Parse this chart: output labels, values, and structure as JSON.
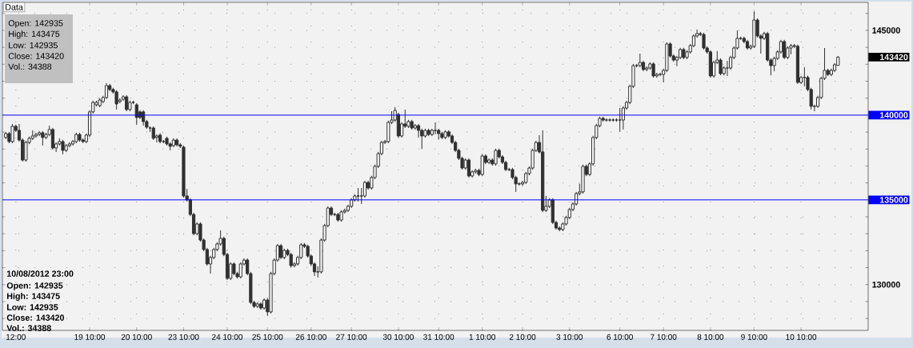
{
  "chart_data": {
    "type": "candlestick",
    "color": "#303030",
    "grid": true,
    "ylim": [
      127300,
      146650
    ],
    "yticks": [
      {
        "value": 128000,
        "label": null
      },
      {
        "value": 129000,
        "label": null
      },
      130000,
      {
        "value": 131000,
        "label": null
      },
      {
        "value": 132000,
        "label": null
      },
      {
        "value": 133000,
        "label": null
      },
      {
        "value": 134000,
        "label": null
      },
      {
        "value": 136000,
        "label": null
      },
      {
        "value": 137000,
        "label": null
      },
      {
        "value": 138000,
        "label": null
      },
      {
        "value": 139000,
        "label": null
      },
      {
        "value": 141000,
        "label": null
      },
      {
        "value": 142000,
        "label": null
      },
      {
        "value": 143000,
        "label": null
      },
      {
        "value": 144000,
        "label": null
      },
      145000,
      {
        "value": 146000,
        "label": null
      }
    ],
    "ref_lines": [
      {
        "axis": "y",
        "value": 140000,
        "label": "140000",
        "color": "#0000ff"
      },
      {
        "axis": "y",
        "value": 135000,
        "label": "135000",
        "color": "#0000ff"
      }
    ],
    "annotations": [
      "Data",
      "Open: 142935",
      "High: 143475",
      "Low: 142935",
      "Close: 143420",
      "Vol.: 34388",
      "10/08/2012 23:00",
      "Open: 142935",
      "High: 143475",
      "Low: 142935",
      "Close: 143420",
      "Vol.: 34388",
      "143420"
    ],
    "categories": [
      null,
      null,
      null,
      "12:00",
      null,
      null,
      null,
      null,
      null,
      null,
      null,
      null,
      null,
      null,
      null,
      null,
      null,
      null,
      null,
      null,
      null,
      null,
      null,
      null,
      null,
      "19 10:00",
      null,
      null,
      null,
      null,
      null,
      null,
      null,
      null,
      null,
      null,
      null,
      null,
      null,
      "20 10:00",
      null,
      null,
      null,
      null,
      null,
      null,
      null,
      null,
      null,
      null,
      null,
      null,
      null,
      "23 10:00",
      null,
      null,
      null,
      null,
      null,
      null,
      null,
      null,
      null,
      null,
      null,
      null,
      "24 10:00",
      null,
      null,
      null,
      null,
      null,
      null,
      null,
      null,
      null,
      null,
      null,
      "25 10:00",
      null,
      null,
      null,
      null,
      null,
      null,
      null,
      null,
      null,
      null,
      null,
      null,
      "26 10:00",
      null,
      null,
      null,
      null,
      null,
      null,
      null,
      null,
      null,
      null,
      null,
      "27 10:00",
      null,
      null,
      null,
      null,
      null,
      null,
      null,
      null,
      null,
      null,
      null,
      null,
      null,
      "30 10:00",
      null,
      null,
      null,
      null,
      null,
      null,
      null,
      null,
      null,
      null,
      null,
      "31 10:00",
      null,
      null,
      null,
      null,
      null,
      null,
      null,
      null,
      null,
      null,
      null,
      null,
      "1 10:00",
      null,
      null,
      null,
      null,
      null,
      null,
      null,
      null,
      null,
      null,
      null,
      "2 10:00",
      null,
      null,
      null,
      null,
      null,
      null,
      null,
      null,
      null,
      null,
      null,
      null,
      null,
      "3 10:00",
      null,
      null,
      null,
      null,
      null,
      null,
      null,
      null,
      null,
      null,
      null,
      null,
      null,
      null,
      "6 10:00",
      null,
      null,
      null,
      null,
      null,
      null,
      null,
      null,
      null,
      null,
      null,
      null,
      "7 10:00",
      null,
      null,
      null,
      null,
      null,
      null,
      null,
      null,
      null,
      null,
      null,
      null,
      null,
      "8 10:00",
      null,
      null,
      null,
      null,
      null,
      null,
      null,
      null,
      null,
      null,
      null,
      null,
      "9 10:00",
      null,
      null,
      null,
      null,
      null,
      null,
      null,
      null,
      null,
      null,
      null,
      null,
      null,
      "10 10:00",
      null,
      null,
      null,
      null,
      null,
      null,
      null,
      null,
      null,
      null,
      null
    ],
    "ohlc": [
      [
        138680,
        139010,
        138580,
        138910
      ],
      [
        138910,
        139010,
        138340,
        138440
      ],
      [
        138440,
        139480,
        138340,
        139340
      ],
      [
        139340,
        139440,
        139000,
        139100
      ],
      [
        139100,
        139480,
        138430,
        138530
      ],
      [
        138530,
        138630,
        137260,
        137350
      ],
      [
        137350,
        138490,
        137250,
        138390
      ],
      [
        138390,
        138730,
        138290,
        138630
      ],
      [
        138630,
        139100,
        138530,
        138770
      ],
      [
        138770,
        138960,
        138670,
        138860
      ],
      [
        138860,
        139060,
        138760,
        138960
      ],
      [
        138960,
        139060,
        138200,
        138680
      ],
      [
        138680,
        138960,
        138580,
        138860
      ],
      [
        138860,
        139380,
        138760,
        139150
      ],
      [
        139150,
        139250,
        137960,
        138060
      ],
      [
        138060,
        138400,
        137830,
        138300
      ],
      [
        138300,
        138630,
        138200,
        138440
      ],
      [
        138440,
        138540,
        137690,
        137920
      ],
      [
        137920,
        138300,
        137820,
        138200
      ],
      [
        138200,
        138400,
        138100,
        138300
      ],
      [
        138300,
        138540,
        138200,
        138440
      ],
      [
        138440,
        138960,
        138340,
        138860
      ],
      [
        138860,
        138960,
        138430,
        138530
      ],
      [
        138530,
        138630,
        138340,
        138440
      ],
      [
        138440,
        138920,
        138340,
        138820
      ],
      [
        138820,
        140290,
        138720,
        140190
      ],
      [
        140190,
        140850,
        140090,
        140750
      ],
      [
        140610,
        140850,
        140510,
        140750
      ],
      [
        140560,
        140990,
        140460,
        140890
      ],
      [
        140800,
        141140,
        140700,
        141040
      ],
      [
        141040,
        141890,
        140940,
        141740
      ],
      [
        141740,
        141840,
        141410,
        141510
      ],
      [
        141510,
        141610,
        141270,
        141370
      ],
      [
        141370,
        141470,
        140330,
        140660
      ],
      [
        140800,
        140990,
        140700,
        140890
      ],
      [
        140940,
        141180,
        140840,
        141080
      ],
      [
        141080,
        141180,
        140230,
        140330
      ],
      [
        140330,
        140850,
        140230,
        140750
      ],
      [
        140750,
        140850,
        140650,
        140750
      ],
      [
        140610,
        140710,
        139430,
        139860
      ],
      [
        140190,
        140290,
        139760,
        139860
      ],
      [
        140190,
        140290,
        139380,
        139620
      ],
      [
        139620,
        139720,
        139190,
        139290
      ],
      [
        139240,
        139340,
        139010,
        139240
      ],
      [
        139240,
        139340,
        138530,
        138630
      ],
      [
        138680,
        138870,
        138390,
        138770
      ],
      [
        138820,
        138920,
        138340,
        138440
      ],
      [
        138440,
        138540,
        138340,
        138440
      ],
      [
        138630,
        138730,
        138200,
        138300
      ],
      [
        138300,
        138400,
        137920,
        138160
      ],
      [
        138200,
        138630,
        138100,
        138530
      ],
      [
        138530,
        138630,
        138150,
        138250
      ],
      [
        138250,
        138350,
        138060,
        138160
      ],
      [
        138110,
        138210,
        135130,
        135230
      ],
      [
        135230,
        135650,
        134900,
        135000
      ],
      [
        135000,
        135100,
        134040,
        134140
      ],
      [
        134140,
        134240,
        132910,
        133010
      ],
      [
        133010,
        133680,
        132910,
        133580
      ],
      [
        133580,
        133680,
        132530,
        132630
      ],
      [
        132630,
        132730,
        131970,
        132070
      ],
      [
        132070,
        132170,
        131120,
        131220
      ],
      [
        131220,
        131700,
        130650,
        131600
      ],
      [
        131600,
        132170,
        131500,
        132070
      ],
      [
        132070,
        132500,
        131970,
        132400
      ],
      [
        132400,
        133200,
        132300,
        132730
      ],
      [
        132730,
        132830,
        131680,
        131780
      ],
      [
        131780,
        131880,
        130270,
        130370
      ],
      [
        130370,
        131320,
        130270,
        131220
      ],
      [
        131220,
        131320,
        130550,
        130650
      ],
      [
        130650,
        130750,
        130360,
        130460
      ],
      [
        130460,
        131320,
        130360,
        131220
      ],
      [
        131220,
        131550,
        131120,
        131450
      ],
      [
        131450,
        131550,
        130550,
        130650
      ],
      [
        130650,
        130750,
        128850,
        128950
      ],
      [
        128950,
        129050,
        128620,
        128720
      ],
      [
        128720,
        128960,
        128620,
        128860
      ],
      [
        128860,
        128960,
        128520,
        128620
      ],
      [
        128620,
        129190,
        128520,
        129090
      ],
      [
        129090,
        129190,
        128150,
        128390
      ],
      [
        128390,
        130750,
        128290,
        130650
      ],
      [
        130650,
        131550,
        130550,
        131450
      ],
      [
        131450,
        132400,
        131350,
        132300
      ],
      [
        132300,
        132400,
        131500,
        131600
      ],
      [
        131600,
        132120,
        131500,
        132020
      ],
      [
        132020,
        132120,
        131680,
        131780
      ],
      [
        131780,
        131880,
        131020,
        131120
      ],
      [
        131120,
        131320,
        131020,
        131220
      ],
      [
        131220,
        131700,
        131120,
        131600
      ],
      [
        131600,
        132450,
        131500,
        132350
      ],
      [
        132350,
        132450,
        132160,
        132260
      ],
      [
        132260,
        132360,
        131590,
        131690
      ],
      [
        131690,
        131790,
        131120,
        131220
      ],
      [
        131220,
        131320,
        130510,
        130750
      ],
      [
        130750,
        131080,
        130420,
        130750
      ],
      [
        130750,
        132730,
        130650,
        132630
      ],
      [
        132630,
        133580,
        132530,
        133480
      ],
      [
        133480,
        134620,
        133380,
        134520
      ],
      [
        134520,
        134620,
        134040,
        134140
      ],
      [
        134140,
        134240,
        134040,
        134140
      ],
      [
        134140,
        134240,
        133710,
        133810
      ],
      [
        133810,
        134390,
        133710,
        134290
      ],
      [
        134290,
        134480,
        134190,
        134380
      ],
      [
        134380,
        134720,
        134280,
        134620
      ],
      [
        134620,
        135100,
        134520,
        135000
      ],
      [
        135000,
        135330,
        134900,
        135230
      ],
      [
        135230,
        135700,
        134900,
        135230
      ],
      [
        135230,
        135700,
        134760,
        135230
      ],
      [
        135230,
        136130,
        135130,
        136030
      ],
      [
        136030,
        136130,
        135600,
        135700
      ],
      [
        135700,
        136420,
        135600,
        136320
      ],
      [
        136320,
        137080,
        136220,
        136980
      ],
      [
        136980,
        137830,
        136880,
        137730
      ],
      [
        137730,
        138490,
        137630,
        138390
      ],
      [
        138390,
        138540,
        138290,
        138440
      ],
      [
        138440,
        139670,
        138340,
        139570
      ],
      [
        139570,
        140230,
        139470,
        139710
      ],
      [
        139710,
        140480,
        139610,
        140280
      ],
      [
        140040,
        140140,
        138670,
        138770
      ],
      [
        138770,
        139580,
        138670,
        139480
      ],
      [
        139480,
        140330,
        139240,
        139340
      ],
      [
        139340,
        139720,
        139240,
        139620
      ],
      [
        139620,
        139720,
        139140,
        139240
      ],
      [
        139240,
        139480,
        139140,
        139380
      ],
      [
        139380,
        139480,
        138670,
        139100
      ],
      [
        139100,
        139200,
        138000,
        138770
      ],
      [
        138770,
        139200,
        138670,
        139100
      ],
      [
        139100,
        139200,
        138760,
        138860
      ],
      [
        138860,
        139200,
        138760,
        139100
      ],
      [
        139100,
        139570,
        138860,
        139100
      ],
      [
        139100,
        139200,
        138560,
        138910
      ],
      [
        138910,
        139010,
        138580,
        138680
      ],
      [
        138680,
        139110,
        138580,
        139010
      ],
      [
        139010,
        139110,
        138670,
        138770
      ],
      [
        138770,
        138870,
        138290,
        138390
      ],
      [
        138390,
        138490,
        137820,
        137920
      ],
      [
        137920,
        138020,
        137350,
        137450
      ],
      [
        137450,
        137550,
        136780,
        136880
      ],
      [
        136880,
        137450,
        136780,
        137350
      ],
      [
        137350,
        137450,
        136310,
        136410
      ],
      [
        136410,
        136750,
        136310,
        136650
      ],
      [
        136650,
        136840,
        136550,
        136740
      ],
      [
        136740,
        136840,
        136400,
        136500
      ],
      [
        136500,
        137690,
        136400,
        137590
      ],
      [
        137590,
        137690,
        137110,
        137210
      ],
      [
        137210,
        137450,
        137110,
        137350
      ],
      [
        137350,
        137450,
        137020,
        137120
      ],
      [
        137120,
        138020,
        137020,
        137920
      ],
      [
        137920,
        138020,
        137440,
        137540
      ],
      [
        137540,
        137640,
        137110,
        137210
      ],
      [
        137210,
        137310,
        136690,
        136790
      ],
      [
        136790,
        136890,
        136690,
        136790
      ],
      [
        136790,
        136890,
        136220,
        136320
      ],
      [
        136320,
        136420,
        135470,
        135940
      ],
      [
        135940,
        136040,
        135840,
        135940
      ],
      [
        135940,
        136130,
        135840,
        136030
      ],
      [
        136030,
        136650,
        135930,
        136550
      ],
      [
        136550,
        136980,
        136450,
        136880
      ],
      [
        136880,
        138020,
        136780,
        137920
      ],
      [
        137920,
        138490,
        137820,
        138390
      ],
      [
        138390,
        138820,
        137730,
        137830
      ],
      [
        137830,
        139100,
        134280,
        134380
      ],
      [
        134380,
        135230,
        134280,
        134620
      ],
      [
        134620,
        135100,
        134520,
        135000
      ],
      [
        135000,
        135100,
        133570,
        133670
      ],
      [
        133670,
        133770,
        133240,
        133340
      ],
      [
        133340,
        133440,
        133150,
        133250
      ],
      [
        133250,
        133680,
        133150,
        133580
      ],
      [
        133580,
        134060,
        133480,
        133960
      ],
      [
        133960,
        134530,
        133860,
        134430
      ],
      [
        134430,
        134860,
        134330,
        134760
      ],
      [
        134760,
        135470,
        134660,
        135370
      ],
      [
        135370,
        135950,
        135270,
        135470
      ],
      [
        135470,
        137080,
        135370,
        136980
      ],
      [
        136980,
        137080,
        136400,
        136500
      ],
      [
        136500,
        137220,
        136400,
        137120
      ],
      [
        137120,
        138780,
        137020,
        138680
      ],
      [
        138680,
        139480,
        138580,
        139380
      ],
      [
        139380,
        139910,
        139280,
        139810
      ],
      [
        139810,
        139910,
        139610,
        139710
      ],
      [
        139710,
        139810,
        139610,
        139710
      ],
      [
        139710,
        139810,
        139610,
        139710
      ],
      [
        139710,
        139810,
        139610,
        139710
      ],
      [
        139710,
        139810,
        139610,
        139710
      ],
      [
        139710,
        140420,
        139010,
        139710
      ],
      [
        139710,
        140520,
        139150,
        140420
      ],
      [
        140420,
        140850,
        140320,
        140750
      ],
      [
        140750,
        141800,
        140650,
        141700
      ],
      [
        141700,
        143020,
        141600,
        142920
      ],
      [
        142920,
        143020,
        142820,
        142920
      ],
      [
        142920,
        143630,
        142820,
        143110
      ],
      [
        143110,
        143210,
        142590,
        142690
      ],
      [
        142690,
        142880,
        142590,
        142780
      ],
      [
        142780,
        143120,
        142680,
        143020
      ],
      [
        143020,
        143120,
        142210,
        142310
      ],
      [
        142310,
        142500,
        142210,
        142400
      ],
      [
        142400,
        142500,
        142300,
        142400
      ],
      [
        142400,
        142740,
        141930,
        142640
      ],
      [
        142640,
        144300,
        142540,
        144200
      ],
      [
        144200,
        144300,
        143390,
        143490
      ],
      [
        143490,
        143590,
        143150,
        143250
      ],
      [
        143250,
        143500,
        142890,
        143400
      ],
      [
        143400,
        143970,
        143300,
        143870
      ],
      [
        143870,
        143970,
        143300,
        143400
      ],
      [
        143400,
        143830,
        143300,
        143730
      ],
      [
        143730,
        144200,
        143630,
        144100
      ],
      [
        144100,
        144770,
        144000,
        144670
      ],
      [
        144670,
        145050,
        144570,
        144810
      ],
      [
        144810,
        144910,
        144660,
        144760
      ],
      [
        144760,
        144860,
        143860,
        143960
      ],
      [
        143960,
        144060,
        143630,
        143730
      ],
      [
        143730,
        143830,
        142210,
        142310
      ],
      [
        142310,
        143210,
        142210,
        143110
      ],
      [
        143110,
        143780,
        143010,
        143250
      ],
      [
        143250,
        143350,
        142350,
        142450
      ],
      [
        142450,
        142880,
        142350,
        142780
      ],
      [
        142780,
        143200,
        142310,
        142780
      ],
      [
        142780,
        143500,
        142680,
        143400
      ],
      [
        143400,
        144060,
        143300,
        143960
      ],
      [
        143960,
        145000,
        143860,
        144530
      ],
      [
        144530,
        144630,
        144430,
        144530
      ],
      [
        144530,
        144630,
        144240,
        144340
      ],
      [
        144340,
        144440,
        143860,
        143960
      ],
      [
        143960,
        144160,
        143860,
        144060
      ],
      [
        144060,
        146130,
        143960,
        145610
      ],
      [
        145610,
        145710,
        144570,
        144670
      ],
      [
        144670,
        144770,
        143630,
        144530
      ],
      [
        144530,
        144910,
        144430,
        144810
      ],
      [
        144810,
        144910,
        143150,
        143250
      ],
      [
        143250,
        143350,
        142350,
        142920
      ],
      [
        142920,
        143450,
        142590,
        143350
      ],
      [
        143350,
        143830,
        143250,
        143730
      ],
      [
        143730,
        144440,
        143630,
        144340
      ],
      [
        144340,
        144440,
        143300,
        143400
      ],
      [
        143400,
        144060,
        143300,
        143960
      ],
      [
        143960,
        144200,
        143590,
        144100
      ],
      [
        144100,
        144200,
        143960,
        144060
      ],
      [
        144060,
        144160,
        141840,
        141930
      ],
      [
        141930,
        142320,
        141830,
        142220
      ],
      [
        142220,
        142820,
        141700,
        142220
      ],
      [
        142220,
        142320,
        141410,
        141510
      ],
      [
        141510,
        141610,
        140330,
        140520
      ],
      [
        140520,
        140620,
        140230,
        140520
      ],
      [
        140520,
        141140,
        140420,
        141040
      ],
      [
        141040,
        142270,
        140940,
        142170
      ],
      [
        142170,
        143960,
        142070,
        142640
      ],
      [
        142640,
        142740,
        142300,
        142400
      ],
      [
        142400,
        142740,
        142300,
        142640
      ],
      [
        142640,
        143070,
        142540,
        142970
      ],
      [
        142935,
        143475,
        142935,
        143420
      ]
    ]
  }
}
